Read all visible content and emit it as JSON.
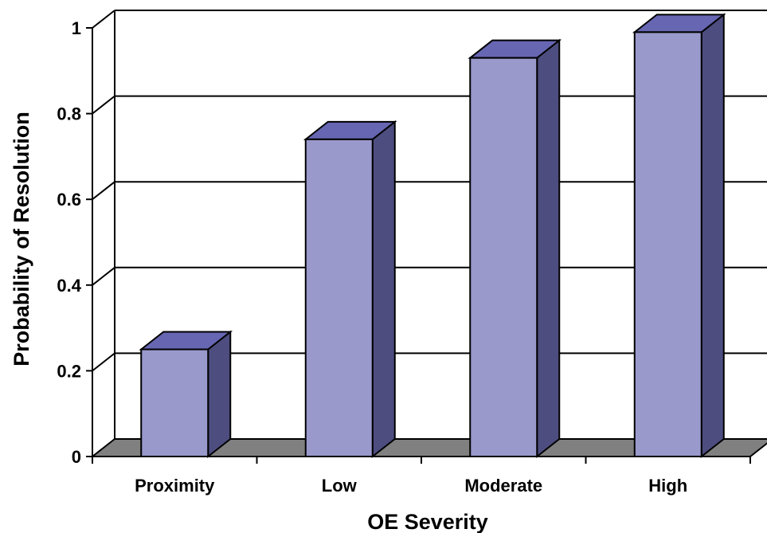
{
  "chart_data": {
    "type": "bar",
    "categories": [
      "Proximity",
      "Low",
      "Moderate",
      "High"
    ],
    "values": [
      0.25,
      0.74,
      0.93,
      0.99
    ],
    "xlabel": "OE Severity",
    "ylabel": "Probability of Resolution",
    "ylim": [
      0,
      1
    ],
    "yticks": [
      "0",
      "0.2",
      "0.4",
      "0.6",
      "0.8",
      "1"
    ],
    "grid": true,
    "legend": "none",
    "three_d": true,
    "colors": {
      "bar_front": "#9999cc",
      "bar_top": "#6666b2",
      "bar_side": "#4d4d80",
      "floor": "#808080",
      "gridline": "#000000"
    }
  }
}
